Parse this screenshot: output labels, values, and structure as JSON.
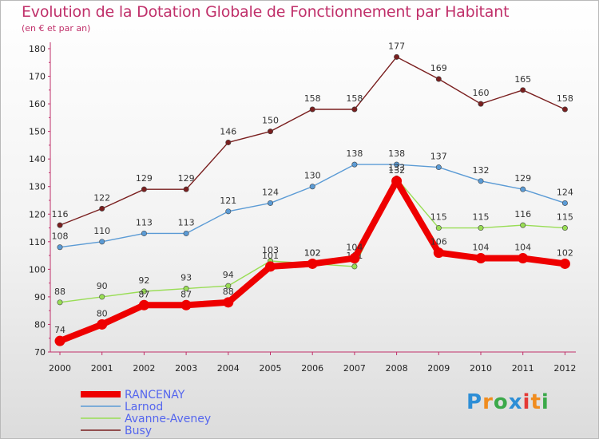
{
  "header": {
    "title": "Evolution de la Dotation Globale de Fonctionnement par Habitant",
    "subtitle": "(en € et par an)"
  },
  "logo": {
    "letters": [
      "P",
      "r",
      "o",
      "x",
      "i",
      "t",
      "i"
    ],
    "colors": [
      "#2d8ed6",
      "#f08c1e",
      "#3ba94a",
      "#2d8ed6",
      "#e53935",
      "#f08c1e",
      "#3ba94a"
    ]
  },
  "chart_data": {
    "type": "line",
    "x": [
      "2000",
      "2001",
      "2002",
      "2003",
      "2004",
      "2005",
      "2006",
      "2007",
      "2008",
      "2009",
      "2010",
      "2011",
      "2012"
    ],
    "ylim": [
      70,
      180
    ],
    "yticks": [
      70,
      80,
      90,
      100,
      110,
      120,
      130,
      140,
      150,
      160,
      170,
      180
    ],
    "grid": false,
    "legend_position": "bottom-left",
    "series": [
      {
        "name": "RANCENAY",
        "color": "#ee0000",
        "values": [
          74,
          80,
          87,
          87,
          88,
          101,
          102,
          104,
          132,
          106,
          104,
          104,
          102
        ],
        "labels": [
          "74",
          "80",
          "87",
          "87",
          "88",
          "101",
          "102",
          "104",
          "132",
          "106",
          "104",
          "104",
          "102"
        ]
      },
      {
        "name": "Larnod",
        "color": "#5b9bd5",
        "values": [
          108,
          110,
          113,
          113,
          121,
          124,
          130,
          138,
          138,
          137,
          132,
          129,
          124
        ],
        "labels": [
          "108",
          "110",
          "113",
          "113",
          "121",
          "124",
          "130",
          "138",
          "138",
          "137",
          "132",
          "129",
          "124"
        ]
      },
      {
        "name": "Avanne-Aveney",
        "color": "#99dd55",
        "values": [
          88,
          90,
          92,
          93,
          94,
          103,
          102,
          101,
          133,
          115,
          115,
          116,
          115
        ],
        "labels": [
          "88",
          "90",
          "92",
          "93",
          "94",
          "103",
          "102",
          "101",
          "133",
          "115",
          "115",
          "116",
          "115"
        ]
      },
      {
        "name": "Busy",
        "color": "#7a1f1f",
        "values": [
          116,
          122,
          129,
          129,
          146,
          150,
          158,
          158,
          177,
          169,
          160,
          165,
          158
        ],
        "labels": [
          "116",
          "122",
          "129",
          "129",
          "146",
          "150",
          "158",
          "158",
          "177",
          "169",
          "160",
          "165",
          "158"
        ]
      }
    ]
  }
}
